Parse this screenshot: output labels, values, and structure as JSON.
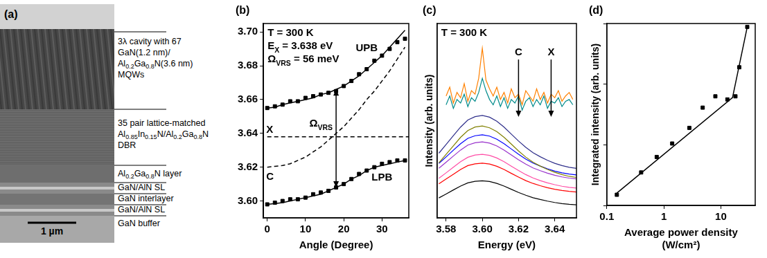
{
  "panel_a": {
    "panel": "(a)",
    "scale_bar": "1 µm",
    "layers": [
      {
        "lines": [
          [
            "3λ cavity with 67"
          ],
          [
            "GaN(1.2 nm)/"
          ],
          [
            "Al",
            {
              "sub": "0.2"
            },
            "Ga",
            {
              "sub": "0.8"
            },
            "N(3.6 nm)"
          ],
          [
            "MQWs"
          ]
        ]
      },
      {
        "lines": [
          [
            "35 pair lattice-matched"
          ],
          [
            "Al",
            {
              "sub": "0.85"
            },
            "In",
            {
              "sub": "0.15"
            },
            "N/Al",
            {
              "sub": "0.2"
            },
            "Ga",
            {
              "sub": "0.8"
            },
            "N"
          ],
          [
            "DBR"
          ]
        ]
      },
      {
        "lines": [
          [
            "Al",
            {
              "sub": "0.2"
            },
            "Ga",
            {
              "sub": "0.8"
            },
            "N layer"
          ]
        ]
      },
      {
        "lines": [
          [
            "GaN/AlN SL"
          ]
        ]
      },
      {
        "lines": [
          [
            "GaN interlayer"
          ]
        ]
      },
      {
        "lines": [
          [
            "GaN/AlN SL"
          ]
        ]
      },
      {
        "lines": [
          [
            "GaN buffer"
          ]
        ]
      }
    ]
  },
  "chart_data": [
    {
      "panel": "(b)",
      "type": "scatter",
      "xlabel": "Angle (Degree)",
      "grid": false,
      "x": [
        0,
        2,
        4,
        6,
        8,
        10,
        12,
        14,
        16,
        18,
        20,
        22,
        24,
        26,
        28,
        30,
        32,
        34,
        36
      ],
      "xlim": [
        -1,
        37
      ],
      "xticks": [
        0,
        10,
        20,
        30
      ],
      "ylim": [
        3.59,
        3.705
      ],
      "yticks": [
        {
          "value": 3.6,
          "label": "3.60"
        },
        3.62,
        3.64,
        3.66,
        3.68,
        {
          "value": 3.7,
          "label": "3.70"
        }
      ],
      "annotations": [
        {
          "text": [
            "T = 300 K"
          ]
        },
        {
          "text": [
            "E",
            {
              "sub": "X"
            },
            " = 3.638 eV"
          ]
        },
        {
          "text": [
            "Ω",
            {
              "sub": "VRS"
            },
            " = 56 meV"
          ]
        }
      ],
      "arrows": [
        {
          "text": [
            "Ω",
            {
              "sub": "VRS"
            }
          ],
          "x": 18,
          "from": 3.608,
          "to": 3.666
        }
      ],
      "series": [
        {
          "name": "UPB",
          "color": "#000000",
          "marker": "square",
          "values": [
            3.655,
            3.656,
            3.657,
            3.659,
            3.659,
            3.661,
            3.662,
            3.663,
            3.664,
            3.665,
            3.668,
            3.671,
            3.675,
            3.678,
            3.683,
            3.686,
            3.69,
            3.694,
            3.696
          ],
          "fit": [
            3.655,
            3.6555,
            3.657,
            3.658,
            3.659,
            3.66,
            3.661,
            3.663,
            3.664,
            3.666,
            3.668,
            3.671,
            3.674,
            3.678,
            3.682,
            3.686,
            3.691,
            3.696,
            3.701
          ]
        },
        {
          "name": "LPB",
          "color": "#000000",
          "marker": "square",
          "values": [
            3.598,
            3.599,
            3.6,
            3.601,
            3.601,
            3.602,
            3.604,
            3.605,
            3.606,
            3.608,
            3.61,
            3.613,
            3.616,
            3.618,
            3.62,
            3.622,
            3.623,
            3.624,
            3.624
          ],
          "fit": [
            3.598,
            3.5985,
            3.599,
            3.6,
            3.601,
            3.602,
            3.603,
            3.604,
            3.606,
            3.608,
            3.61,
            3.613,
            3.615,
            3.618,
            3.62,
            3.621,
            3.622,
            3.623,
            3.624
          ]
        },
        {
          "name": "C",
          "color": "#000000",
          "line_style": "dashed",
          "values": [
            3.62,
            3.6205,
            3.621,
            3.622,
            3.624,
            3.626,
            3.629,
            3.632,
            3.636,
            3.64,
            3.644,
            3.649,
            3.654,
            3.66,
            3.665,
            3.671,
            3.677,
            3.684,
            3.691
          ]
        },
        {
          "name": "X",
          "color": "#000000",
          "line_style": "dashed",
          "x": [
            0,
            37
          ],
          "values": [
            3.638,
            3.638
          ]
        }
      ]
    },
    {
      "panel": "(c)",
      "type": "line",
      "xlabel": "Energy (eV)",
      "ylabel": "Intensity (arb. units)",
      "tick_labels": "x",
      "grid": false,
      "x": [
        3.576,
        3.58,
        3.584,
        3.588,
        3.592,
        3.596,
        3.6,
        3.604,
        3.608,
        3.612,
        3.616,
        3.62,
        3.624,
        3.628,
        3.632,
        3.636,
        3.64,
        3.644,
        3.648,
        3.652
      ],
      "xlim": [
        3.575,
        3.652
      ],
      "xticks": [
        3.58,
        {
          "value": 3.6,
          "label": "3.60"
        },
        3.62,
        3.64
      ],
      "ylim": [
        0,
        11
      ],
      "yticks": [],
      "annotations": [
        {
          "text": [
            "T = 300 K"
          ]
        }
      ],
      "arrows": [
        {
          "text": [
            "C"
          ],
          "x": 3.62
        },
        {
          "text": [
            "X"
          ],
          "x": 3.638
        }
      ],
      "series": [
        {
          "color": "#000000",
          "values": [
            1.13,
            1.35,
            1.58,
            1.8,
            1.98,
            2.07,
            2.1,
            2.06,
            1.95,
            1.8,
            1.62,
            1.44,
            1.28,
            1.14,
            1.04,
            0.95,
            0.87,
            0.81,
            0.77,
            0.74
          ]
        },
        {
          "color": "#ff0000",
          "values": [
            1.93,
            2.2,
            2.47,
            2.74,
            2.96,
            3.06,
            3.1,
            3.05,
            2.92,
            2.74,
            2.52,
            2.31,
            2.11,
            1.95,
            1.82,
            1.71,
            1.62,
            1.55,
            1.5,
            1.46
          ]
        },
        {
          "color": "#ff4da6",
          "values": [
            2.24,
            2.55,
            2.87,
            3.18,
            3.43,
            3.56,
            3.6,
            3.54,
            3.39,
            3.18,
            2.93,
            2.68,
            2.45,
            2.26,
            2.11,
            1.98,
            1.88,
            1.79,
            1.73,
            1.69
          ]
        },
        {
          "color": "#9932cc",
          "values": [
            2.81,
            3.15,
            3.5,
            3.84,
            4.12,
            4.25,
            4.3,
            4.23,
            4.07,
            3.84,
            3.56,
            3.29,
            3.04,
            2.83,
            2.67,
            2.53,
            2.41,
            2.32,
            2.25,
            2.21
          ]
        },
        {
          "color": "#0000ff",
          "values": [
            3.08,
            3.45,
            3.83,
            4.2,
            4.5,
            4.65,
            4.7,
            4.63,
            4.45,
            4.2,
            3.9,
            3.6,
            3.33,
            3.1,
            2.93,
            2.78,
            2.65,
            2.55,
            2.48,
            2.43
          ]
        },
        {
          "color": "#808000",
          "values": [
            3.12,
            3.6,
            4.08,
            4.56,
            4.94,
            5.14,
            5.2,
            5.1,
            4.88,
            4.56,
            4.18,
            3.79,
            3.44,
            3.15,
            2.93,
            2.74,
            2.58,
            2.45,
            2.35,
            2.29
          ]
        },
        {
          "color": "#2e2e8a",
          "values": [
            3.66,
            4.15,
            4.65,
            5.14,
            5.54,
            5.73,
            5.8,
            5.7,
            5.47,
            5.14,
            4.74,
            4.35,
            3.99,
            3.69,
            3.46,
            3.26,
            3.09,
            2.96,
            2.86,
            2.8
          ]
        },
        {
          "color": "#008b8b",
          "x": [
            3.58,
            3.582,
            3.584,
            3.586,
            3.588,
            3.59,
            3.592,
            3.594,
            3.596,
            3.598,
            3.6,
            3.602,
            3.604,
            3.606,
            3.608,
            3.61,
            3.612,
            3.614,
            3.616,
            3.618,
            3.62,
            3.622,
            3.624,
            3.626,
            3.628,
            3.63,
            3.632,
            3.634,
            3.636,
            3.638,
            3.64,
            3.642,
            3.644,
            3.646,
            3.648,
            3.65
          ],
          "values": [
            6.4,
            6.9,
            6.2,
            6.7,
            6.5,
            7.0,
            6.3,
            6.8,
            6.6,
            7.1,
            7.9,
            7.2,
            6.7,
            6.4,
            6.9,
            6.3,
            6.8,
            6.2,
            6.7,
            6.5,
            6.9,
            6.1,
            6.6,
            6.8,
            6.3,
            6.7,
            6.4,
            6.9,
            6.2,
            6.6,
            6.5,
            6.8,
            6.3,
            6.6,
            6.7,
            6.4
          ]
        },
        {
          "color": "#ff8000",
          "x": [
            3.58,
            3.582,
            3.584,
            3.586,
            3.588,
            3.59,
            3.592,
            3.594,
            3.596,
            3.598,
            3.6,
            3.602,
            3.604,
            3.606,
            3.608,
            3.61,
            3.612,
            3.614,
            3.616,
            3.618,
            3.62,
            3.622,
            3.624,
            3.626,
            3.628,
            3.63,
            3.632,
            3.634,
            3.636,
            3.638,
            3.64,
            3.642,
            3.644,
            3.646,
            3.648,
            3.65
          ],
          "values": [
            6.9,
            7.4,
            6.5,
            7.1,
            6.8,
            7.6,
            6.6,
            7.2,
            7.0,
            7.9,
            9.6,
            7.8,
            7.3,
            6.9,
            7.4,
            6.7,
            7.1,
            6.5,
            7.3,
            6.8,
            7.0,
            6.4,
            7.2,
            6.9,
            6.6,
            7.3,
            6.7,
            7.1,
            6.5,
            7.0,
            6.8,
            7.2,
            6.6,
            6.9,
            7.1,
            6.7
          ]
        }
      ]
    },
    {
      "panel": "(d)",
      "type": "scatter",
      "log": true,
      "tick_labels": "x",
      "grid": false,
      "xlabel": [
        "Average power density",
        "(W/cm²)"
      ],
      "ylabel": "Integrated intensity (arb. units)",
      "xlim": [
        0.1,
        40
      ],
      "xticks": [
        0.1,
        1,
        10
      ],
      "ylim": [
        1,
        1000
      ],
      "yticks": [
        1,
        10,
        100,
        1000
      ],
      "series": [
        {
          "color": "#000000",
          "marker": "square",
          "x": [
            0.15,
            0.4,
            0.75,
            1.4,
            2.8,
            4.8,
            8,
            13,
            18,
            21,
            29
          ],
          "values": [
            1.5,
            3.5,
            6.3,
            10.5,
            19,
            41,
            63,
            56,
            63,
            190,
            880
          ]
        },
        {
          "color": "#000000",
          "line_style": "solid",
          "x": [
            0.15,
            16,
            29
          ],
          "values": [
            1.6,
            60,
            880
          ]
        }
      ]
    }
  ]
}
